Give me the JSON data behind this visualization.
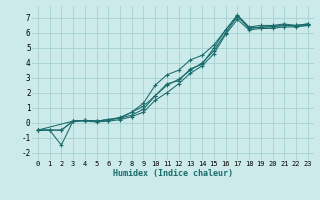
{
  "xlabel": "Humidex (Indice chaleur)",
  "xlim": [
    -0.5,
    23.5
  ],
  "ylim": [
    -2.5,
    7.8
  ],
  "xticks": [
    0,
    1,
    2,
    3,
    4,
    5,
    6,
    7,
    8,
    9,
    10,
    11,
    12,
    13,
    14,
    15,
    16,
    17,
    18,
    19,
    20,
    21,
    22,
    23
  ],
  "yticks": [
    -2,
    -1,
    0,
    1,
    2,
    3,
    4,
    5,
    6,
    7
  ],
  "bg_color": "#cceaea",
  "grid_color": "#aad4d4",
  "line_color": "#1a6b6b",
  "lines": [
    {
      "x": [
        0,
        1,
        2,
        3,
        4,
        5,
        6,
        7,
        8,
        9,
        10,
        11,
        12,
        13,
        14,
        15,
        16,
        17,
        18,
        19,
        20,
        21,
        22,
        23
      ],
      "y": [
        -0.5,
        -0.5,
        -0.5,
        0.1,
        0.15,
        0.1,
        0.2,
        0.3,
        0.5,
        0.9,
        1.8,
        2.5,
        2.9,
        3.5,
        4.0,
        4.8,
        6.0,
        7.1,
        6.3,
        6.4,
        6.4,
        6.5,
        6.5,
        6.6
      ]
    },
    {
      "x": [
        0,
        1,
        2,
        3,
        4,
        5,
        6,
        7,
        8,
        9,
        10,
        11,
        12,
        13,
        14,
        15,
        16,
        17,
        18,
        19,
        20,
        21,
        22,
        23
      ],
      "y": [
        -0.5,
        -0.5,
        -0.5,
        0.1,
        0.15,
        0.1,
        0.2,
        0.35,
        0.7,
        1.3,
        2.5,
        3.2,
        3.5,
        4.2,
        4.5,
        5.2,
        6.2,
        7.2,
        6.4,
        6.5,
        6.5,
        6.6,
        6.5,
        6.6
      ]
    },
    {
      "x": [
        0,
        3,
        4,
        5,
        6,
        7,
        8,
        9,
        10,
        11,
        12,
        13,
        14,
        15,
        16,
        17,
        18,
        19,
        20,
        21,
        22,
        23
      ],
      "y": [
        -0.5,
        0.1,
        0.15,
        0.1,
        0.2,
        0.3,
        0.7,
        1.1,
        1.8,
        2.6,
        2.8,
        3.6,
        3.9,
        5.0,
        6.2,
        7.15,
        6.35,
        6.35,
        6.45,
        6.5,
        6.45,
        6.5
      ]
    },
    {
      "x": [
        0,
        1,
        2,
        3,
        4,
        5,
        6,
        7,
        8,
        9,
        10,
        11,
        12,
        13,
        14,
        15,
        16,
        17,
        18,
        19,
        20,
        21,
        22,
        23
      ],
      "y": [
        -0.5,
        -0.5,
        -1.5,
        0.1,
        0.1,
        0.05,
        0.1,
        0.2,
        0.4,
        0.7,
        1.5,
        2.0,
        2.6,
        3.3,
        3.8,
        4.6,
        5.9,
        6.9,
        6.2,
        6.3,
        6.3,
        6.4,
        6.4,
        6.5
      ]
    }
  ]
}
